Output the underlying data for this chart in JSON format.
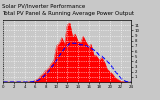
{
  "title": "Total PV Panel & Running Average Power Output",
  "subtitle": "Solar PV/Inverter Performance",
  "bg_color": "#c8c8c8",
  "plot_bg_color": "#c8c8c8",
  "grid_color": "#ffffff",
  "fill_color": "#ff0000",
  "avg_line_color": "#0000ff",
  "x_hours": [
    0,
    0.5,
    1,
    1.5,
    2,
    2.5,
    3,
    3.5,
    4,
    4.5,
    5,
    5.5,
    6,
    6.5,
    7,
    7.5,
    8,
    8.5,
    9,
    9.5,
    10,
    10.5,
    11,
    11.5,
    12,
    12.5,
    13,
    13.5,
    14,
    14.5,
    15,
    15.5,
    16,
    16.5,
    17,
    17.5,
    18,
    18.5,
    19,
    19.5,
    20,
    20.5,
    21,
    21.5,
    22,
    22.5,
    23,
    23.5,
    24
  ],
  "pv_power": [
    0,
    0,
    0,
    0,
    0,
    0,
    0,
    0,
    0,
    0,
    0.05,
    0.1,
    0.3,
    0.6,
    1.0,
    1.5,
    2.2,
    3.0,
    4.0,
    5.0,
    6.2,
    7.2,
    8.0,
    8.8,
    9.5,
    10.2,
    9.8,
    10.5,
    9.0,
    8.2,
    8.8,
    8.0,
    7.5,
    7.0,
    6.0,
    5.5,
    4.5,
    4.8,
    3.5,
    2.8,
    2.0,
    1.5,
    1.0,
    0.5,
    0.2,
    0.1,
    0.05,
    0,
    0
  ],
  "avg_power": [
    0,
    0,
    0,
    0,
    0,
    0,
    0,
    0,
    0,
    0,
    0.02,
    0.05,
    0.15,
    0.3,
    0.6,
    1.0,
    1.5,
    2.0,
    2.8,
    3.4,
    4.2,
    5.0,
    5.8,
    6.5,
    7.0,
    7.5,
    7.5,
    7.5,
    7.4,
    7.2,
    7.2,
    7.0,
    6.8,
    6.5,
    6.2,
    5.8,
    5.2,
    5.0,
    4.5,
    4.0,
    3.5,
    2.8,
    2.0,
    1.5,
    0.8,
    0.4,
    0.1,
    0,
    0
  ],
  "ylim": [
    0,
    12
  ],
  "ytick_values": [
    1,
    2,
    3,
    4,
    5,
    6,
    7,
    8,
    9,
    10,
    11
  ],
  "ytick_labels": [
    "1",
    "2",
    "3",
    "4",
    "5",
    "6",
    "7",
    "8",
    "9",
    "10",
    "11"
  ],
  "xlim": [
    0,
    24
  ],
  "xtick_positions": [
    0,
    2,
    4,
    6,
    8,
    10,
    12,
    14,
    16,
    18,
    20,
    22,
    24
  ],
  "xtick_labels": [
    "0",
    "2",
    "4",
    "6",
    "8",
    "10",
    "12",
    "14",
    "16",
    "18",
    "20",
    "22",
    "24"
  ],
  "title_fontsize": 4.0,
  "tick_fontsize": 2.8,
  "grid_linewidth": 0.5,
  "avg_linewidth": 0.8,
  "fill_linewidth": 0.3
}
